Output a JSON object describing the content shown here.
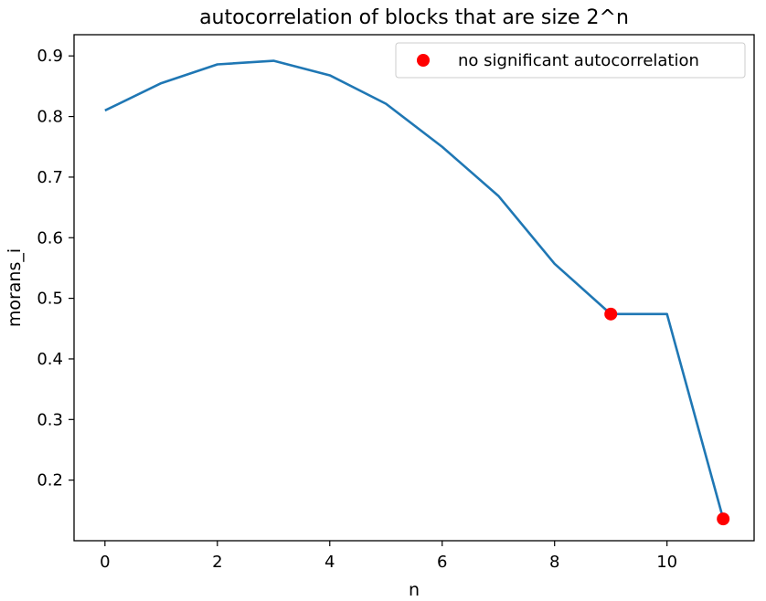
{
  "chart_data": {
    "type": "line",
    "title": "autocorrelation of blocks that are size 2^n",
    "xlabel": "n",
    "ylabel": "morans_i",
    "xlim": [
      -0.55,
      11.55
    ],
    "ylim": [
      0.1,
      0.935
    ],
    "xticks": [
      0,
      2,
      4,
      6,
      8,
      10
    ],
    "yticks": [
      0.2,
      0.3,
      0.4,
      0.5,
      0.6,
      0.7,
      0.8,
      0.9
    ],
    "grid": false,
    "legend_position": "top-right",
    "series": [
      {
        "color": "#1f77b4",
        "x": [
          0,
          1,
          2,
          3,
          4,
          5,
          6,
          7,
          8,
          9,
          10,
          11
        ],
        "y": [
          0.81,
          0.855,
          0.886,
          0.892,
          0.868,
          0.821,
          0.75,
          0.669,
          0.557,
          0.474,
          0.474,
          0.136
        ]
      },
      {
        "name": "no significant autocorrelation",
        "color": "#ff0000",
        "marker": "circle",
        "x": [
          9,
          11
        ],
        "y": [
          0.474,
          0.136
        ]
      }
    ]
  }
}
